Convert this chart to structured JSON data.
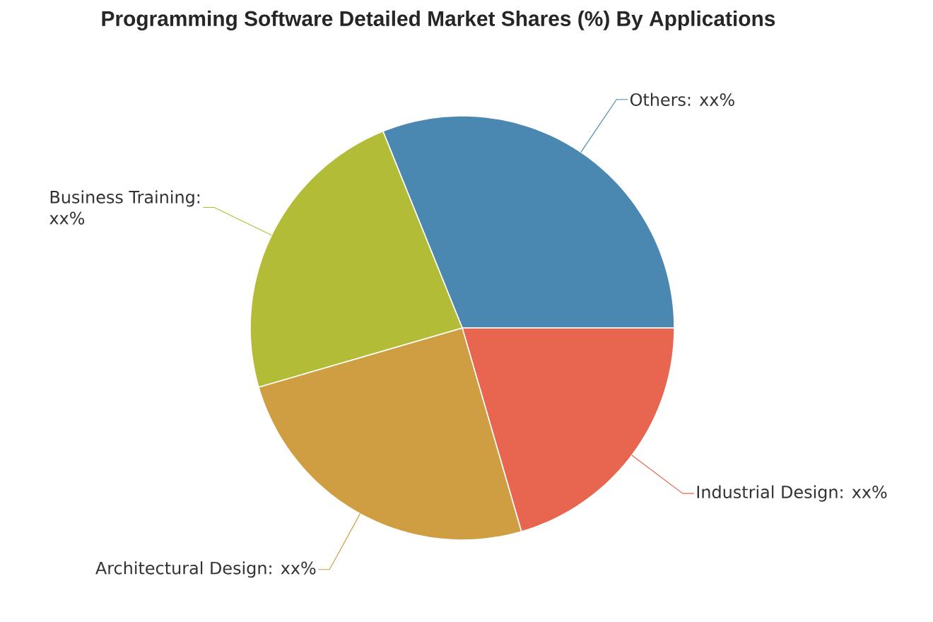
{
  "chart_data": {
    "type": "pie",
    "title": "Programming Software Detailed Market Shares (%) By Applications",
    "categories": [
      "Others",
      "Industrial Design",
      "Architectural Design",
      "Business Training"
    ],
    "values": [
      31.1,
      20.5,
      25.0,
      23.4
    ],
    "colors": [
      "#4a88b1",
      "#e8664f",
      "#cf9e43",
      "#b3bc37"
    ],
    "value_labels": [
      ": xx%",
      ": xx%",
      ": xx%",
      ": xx%"
    ]
  }
}
